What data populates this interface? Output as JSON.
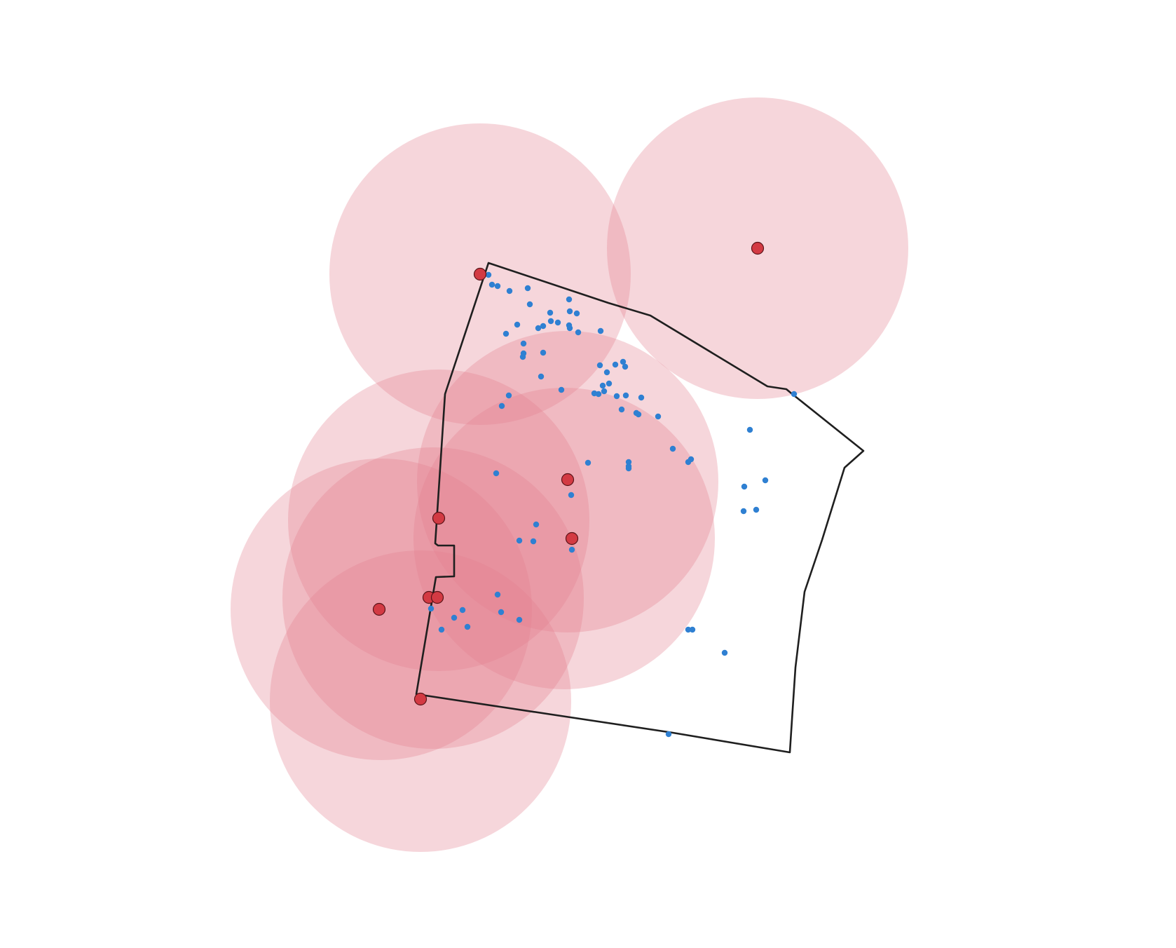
{
  "map": {
    "background": "#ffffff",
    "boundary_color": "#1f1f1f",
    "buffer_color": "#e37f8e",
    "site_color": "#d33a43",
    "point_color": "#2f80d2",
    "layers": [
      "boundary",
      "buffer-zones",
      "sites",
      "points"
    ]
  }
}
